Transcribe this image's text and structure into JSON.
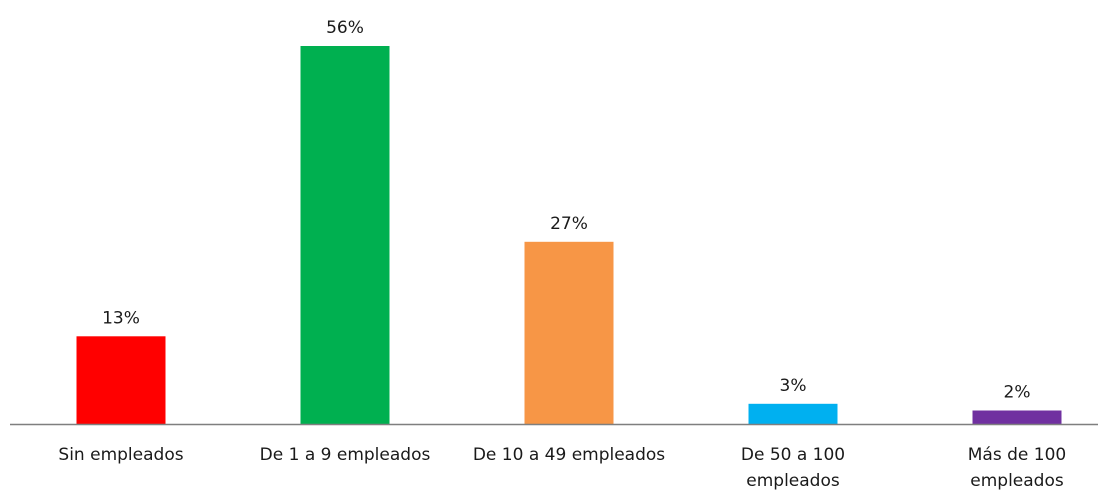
{
  "chart_data": {
    "type": "bar",
    "title": "",
    "xlabel": "",
    "ylabel": "",
    "ylim": [
      0,
      56
    ],
    "grid": false,
    "legend": "none",
    "categories": [
      [
        "Sin empleados"
      ],
      [
        "De 1 a 9 empleados"
      ],
      [
        "De 10 a 49 empleados"
      ],
      [
        "De 50 a 100",
        "empleados"
      ],
      [
        "Más de 100",
        "empleados"
      ]
    ],
    "values": [
      13,
      56,
      27,
      3,
      2
    ],
    "data_labels": [
      "13%",
      "56%",
      "27%",
      "3%",
      "2%"
    ],
    "colors": [
      "#ff0000",
      "#00b050",
      "#f79646",
      "#00b0f0",
      "#7030a0"
    ],
    "axis_color": "#7f7f7f"
  }
}
